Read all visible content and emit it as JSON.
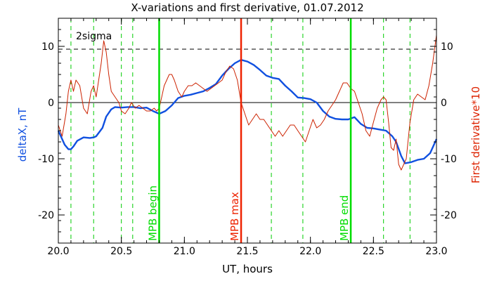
{
  "chart_data": {
    "type": "line",
    "title": "X-variations and first derivative, 01.07.2012",
    "xlabel": "UT, hours",
    "ylabel_left": "deltaX, nT",
    "ylabel_right": "First derivative*10",
    "xlim": [
      20.0,
      23.0
    ],
    "ylim": [
      -25,
      15
    ],
    "x_ticks": [
      20.0,
      20.5,
      21.0,
      21.5,
      22.0,
      22.5,
      23.0
    ],
    "x_tick_labels": [
      "20.0",
      "20.5",
      "21.0",
      "21.5",
      "22.0",
      "22.5",
      "23.0"
    ],
    "y_ticks": [
      -20,
      -10,
      0,
      10
    ],
    "y_tick_labels": [
      "-20",
      "-10",
      "0",
      "10"
    ],
    "sigma_level": 9.5,
    "sigma_label": "2sigma",
    "dashed_verticals": [
      20.1,
      20.28,
      20.5,
      20.59,
      21.69,
      21.94,
      22.58,
      22.79
    ],
    "events": [
      {
        "label": "MPB begin",
        "x": 20.8,
        "color": "#00dd00"
      },
      {
        "label": "MPB max",
        "x": 21.45,
        "color": "#ee2200"
      },
      {
        "label": "MPB end",
        "x": 22.32,
        "color": "#00dd00"
      }
    ],
    "series": [
      {
        "name": "deltaX",
        "axis": "left",
        "color": "#1050e0",
        "x": [
          20.0,
          20.05,
          20.08,
          20.1,
          20.12,
          20.15,
          20.2,
          20.25,
          20.28,
          20.3,
          20.35,
          20.38,
          20.42,
          20.45,
          20.5,
          20.55,
          20.6,
          20.65,
          20.7,
          20.75,
          20.78,
          20.8,
          20.85,
          20.9,
          20.95,
          21.0,
          21.05,
          21.1,
          21.15,
          21.2,
          21.25,
          21.3,
          21.35,
          21.4,
          21.45,
          21.5,
          21.55,
          21.6,
          21.65,
          21.7,
          21.75,
          21.8,
          21.85,
          21.9,
          21.95,
          22.0,
          22.05,
          22.1,
          22.15,
          22.2,
          22.25,
          22.3,
          22.35,
          22.4,
          22.45,
          22.5,
          22.55,
          22.6,
          22.65,
          22.68,
          22.72,
          22.75,
          22.8,
          22.85,
          22.9,
          22.95,
          23.0
        ],
        "y": [
          -5.0,
          -7.5,
          -8.3,
          -8.3,
          -7.8,
          -6.8,
          -6.2,
          -6.3,
          -6.2,
          -6.0,
          -4.5,
          -2.5,
          -1.2,
          -0.8,
          -0.9,
          -0.8,
          -0.8,
          -1.0,
          -0.9,
          -1.5,
          -1.8,
          -2.0,
          -1.5,
          -0.5,
          0.8,
          1.2,
          1.4,
          1.7,
          2.0,
          2.6,
          3.3,
          4.8,
          6.0,
          7.0,
          7.6,
          7.3,
          6.7,
          5.8,
          4.8,
          4.4,
          4.2,
          3.0,
          2.0,
          0.9,
          0.8,
          0.6,
          0.0,
          -1.5,
          -2.5,
          -2.9,
          -3.0,
          -3.0,
          -2.6,
          -3.8,
          -4.5,
          -4.6,
          -4.8,
          -5.0,
          -6.0,
          -7.0,
          -9.5,
          -10.8,
          -10.6,
          -10.2,
          -10.0,
          -9.0,
          -6.5
        ]
      },
      {
        "name": "First derivative*10",
        "axis": "right",
        "color": "#cc2200",
        "x": [
          20.0,
          20.03,
          20.06,
          20.08,
          20.1,
          20.12,
          20.14,
          20.17,
          20.2,
          20.23,
          20.26,
          20.28,
          20.3,
          20.32,
          20.34,
          20.36,
          20.38,
          20.4,
          20.42,
          20.45,
          20.48,
          20.5,
          20.53,
          20.56,
          20.58,
          20.61,
          20.64,
          20.67,
          20.7,
          20.73,
          20.76,
          20.78,
          20.8,
          20.82,
          20.84,
          20.86,
          20.88,
          20.9,
          20.92,
          20.95,
          20.98,
          21.0,
          21.03,
          21.06,
          21.09,
          21.12,
          21.15,
          21.18,
          21.21,
          21.24,
          21.27,
          21.3,
          21.33,
          21.36,
          21.39,
          21.42,
          21.45,
          21.48,
          21.51,
          21.54,
          21.57,
          21.6,
          21.63,
          21.66,
          21.69,
          21.72,
          21.75,
          21.78,
          21.81,
          21.84,
          21.87,
          21.9,
          21.93,
          21.96,
          21.99,
          22.02,
          22.05,
          22.08,
          22.11,
          22.14,
          22.17,
          22.2,
          22.23,
          22.26,
          22.29,
          22.32,
          22.35,
          22.38,
          22.41,
          22.44,
          22.47,
          22.5,
          22.53,
          22.56,
          22.58,
          22.6,
          22.62,
          22.64,
          22.66,
          22.68,
          22.7,
          22.72,
          22.74,
          22.76,
          22.79,
          22.82,
          22.85,
          22.88,
          22.91,
          22.94,
          22.97,
          23.0
        ],
        "y": [
          -4.0,
          -6.0,
          -2.0,
          2.0,
          4.0,
          2.0,
          4.0,
          3.0,
          -1.0,
          -2.0,
          2.0,
          3.0,
          1.0,
          4.0,
          7.0,
          11.0,
          9.0,
          5.0,
          2.0,
          1.0,
          0.0,
          -1.5,
          -2.0,
          -1.0,
          0.0,
          -1.0,
          -0.5,
          -1.0,
          -1.5,
          -1.5,
          -1.0,
          -1.5,
          -1.0,
          1.0,
          3.0,
          4.0,
          5.0,
          5.0,
          4.0,
          2.0,
          1.0,
          2.0,
          3.0,
          3.0,
          3.5,
          3.0,
          2.5,
          2.0,
          2.5,
          3.0,
          3.5,
          4.0,
          5.5,
          6.5,
          6.0,
          4.0,
          0.0,
          -2.0,
          -4.0,
          -3.0,
          -2.0,
          -3.0,
          -3.0,
          -4.0,
          -5.0,
          -6.0,
          -5.0,
          -6.0,
          -5.0,
          -4.0,
          -4.0,
          -5.0,
          -6.0,
          -7.0,
          -5.0,
          -3.0,
          -4.5,
          -4.0,
          -3.0,
          -1.5,
          -0.5,
          0.5,
          2.0,
          3.5,
          3.5,
          2.5,
          2.0,
          0.0,
          -2.0,
          -5.0,
          -6.0,
          -3.5,
          -1.0,
          0.5,
          1.0,
          0.5,
          -3.5,
          -8.0,
          -8.5,
          -6.5,
          -11.0,
          -12.0,
          -11.0,
          -10.0,
          -3.5,
          0.5,
          1.5,
          1.0,
          0.5,
          3.0,
          7.0,
          12.0
        ]
      }
    ]
  }
}
